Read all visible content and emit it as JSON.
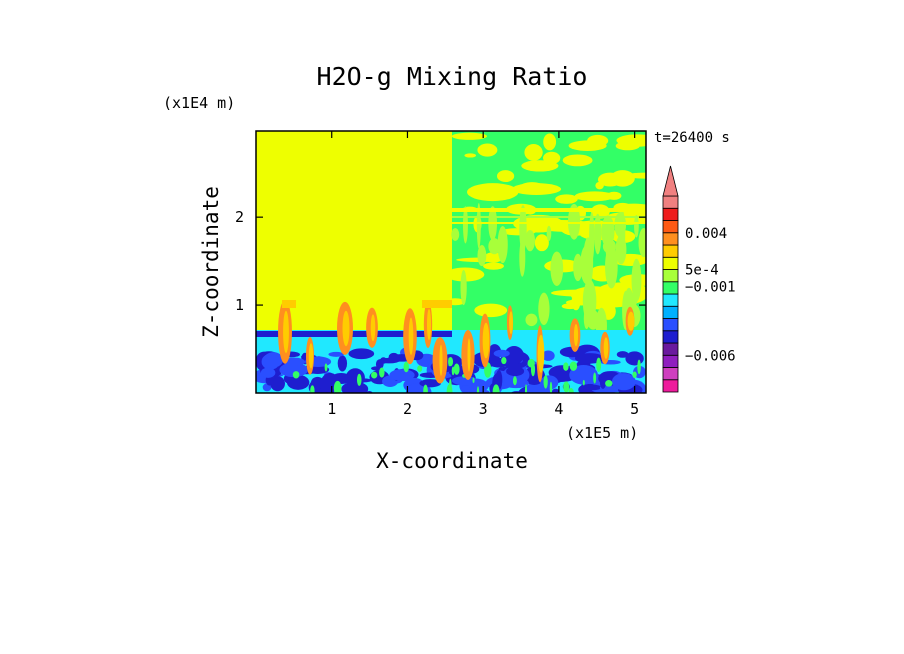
{
  "chart_data": {
    "type": "heatmap",
    "title": "H2O-g Mixing Ratio",
    "xlabel": "X-coordinate",
    "ylabel": "Z-coordinate",
    "x_unit": "(x1E5 m)",
    "y_unit": "(x1E4 m)",
    "time_label": "t=26400 s",
    "xlim": [
      0,
      5.15
    ],
    "ylim": [
      0,
      2.98
    ],
    "x_ticks": [
      {
        "value": 1,
        "label": "1"
      },
      {
        "value": 2,
        "label": "2"
      },
      {
        "value": 3,
        "label": "3"
      },
      {
        "value": 4,
        "label": "4"
      },
      {
        "value": 5,
        "label": "5"
      }
    ],
    "y_ticks": [
      {
        "value": 1,
        "label": "1"
      },
      {
        "value": 2,
        "label": "2"
      }
    ],
    "colorbar": {
      "colors": [
        "#ee1c9c",
        "#cf3fbf",
        "#8f1fbf",
        "#6a1a9e",
        "#1e1ecf",
        "#2a4fff",
        "#00b0ff",
        "#20e8ff",
        "#33ff66",
        "#a8ff3a",
        "#eeff00",
        "#ffcc00",
        "#ff8f1f",
        "#ff5a14",
        "#ee1c1c",
        "#f08080"
      ],
      "extend": "max",
      "labels": [
        {
          "level_index": 3,
          "text": "−0.006"
        },
        {
          "level_index": 8.6,
          "text": "−0.001"
        },
        {
          "level_index": 10,
          "text": "5e-4"
        },
        {
          "level_index": 13,
          "text": "0.004"
        }
      ]
    }
  }
}
